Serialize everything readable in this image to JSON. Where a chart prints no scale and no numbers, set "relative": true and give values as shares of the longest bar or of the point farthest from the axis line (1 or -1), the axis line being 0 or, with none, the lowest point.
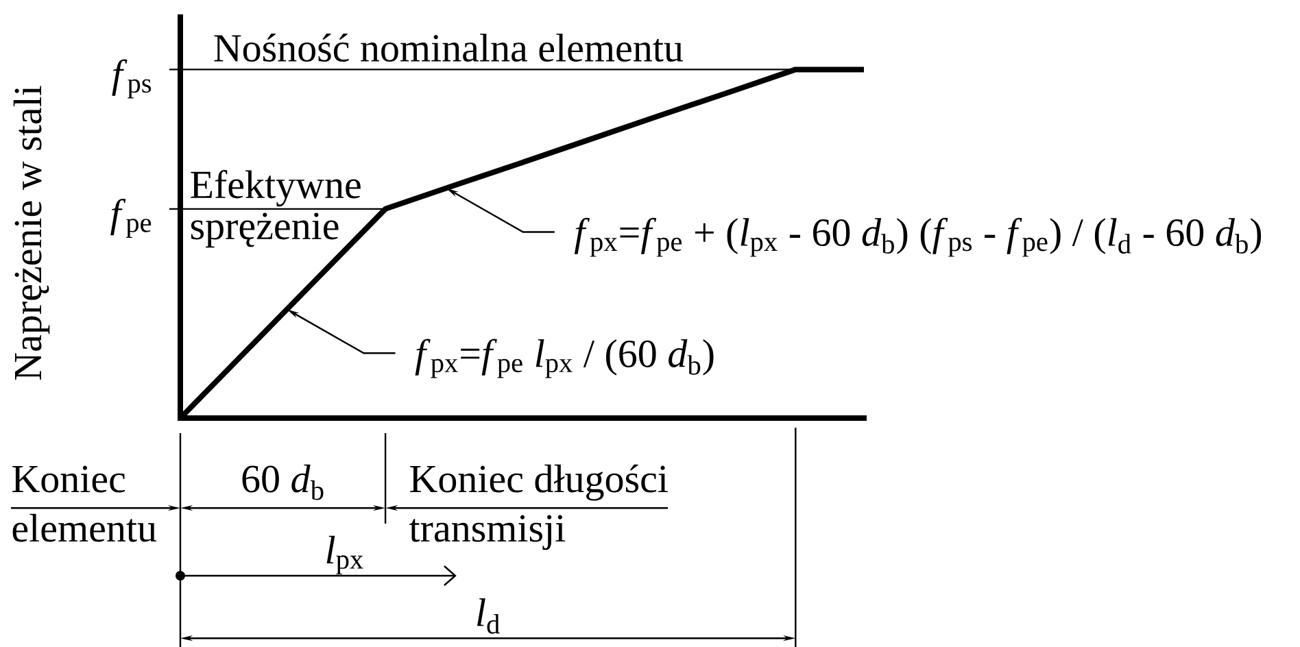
{
  "chart_data": {
    "type": "line",
    "ylabel": "Naprężenie w stali",
    "relative": true,
    "categories": [
      null,
      null,
      null,
      null,
      null,
      null,
      null,
      null,
      null,
      null,
      null
    ],
    "values": [
      0,
      0.2,
      0.4,
      0.6,
      0.667,
      0.733,
      0.8,
      0.867,
      0.933,
      1,
      1
    ],
    "color": "#000000",
    "ref_lines": [
      {
        "axis": "y",
        "value": 1,
        "label": "*f*$_{ps}$"
      },
      {
        "axis": "y",
        "value": 0.6,
        "label": "*f*$_{pe}$"
      }
    ],
    "annotations": [
      "Nośność nominalna elementu",
      "Efektywne sprężenie",
      "*f*$_{px}$=*f*$_{pe}$ + (*l*$_{px}$ - 60 *d*$_{b}$) (*f*$_{ps}$ - *f*$_{pe}$) / (*l*$_{d}$ - 60 *d*$_{b}$)",
      "*f*$_{px}$=*f*$_{pe}$ *l*$_{px}$ / (60 *d*$_{b}$)",
      "Koniec elementu",
      "60 *d*$_{b}$",
      "Koniec długości transmisji",
      "*l*$_{px}$",
      "*l*$_{d}$"
    ]
  }
}
